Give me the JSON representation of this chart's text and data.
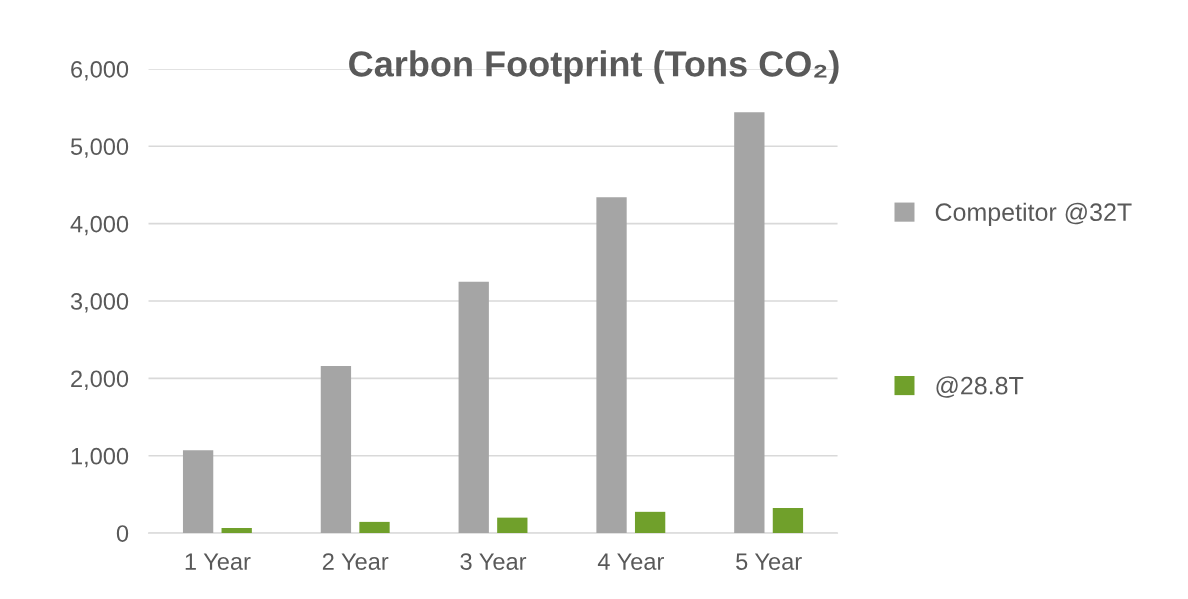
{
  "chart_data": {
    "type": "bar",
    "title": "Carbon Footprint (Tons CO₂)",
    "categories": [
      "1 Year",
      "2 Year",
      "3 Year",
      "4 Year",
      "5 Year"
    ],
    "series": [
      {
        "name": "Competitor @32T",
        "color": "#a5a5a5",
        "values": [
          1070,
          2160,
          3250,
          4340,
          5440
        ]
      },
      {
        "name": "@28.8T",
        "color": "#70a02b",
        "values": [
          65,
          145,
          200,
          275,
          325
        ]
      }
    ],
    "ylim": [
      0,
      6000
    ],
    "yticks": [
      {
        "value": 0,
        "label": "0"
      },
      {
        "value": 1000,
        "label": "1,000"
      },
      {
        "value": 2000,
        "label": "2,000"
      },
      {
        "value": 3000,
        "label": "3,000"
      },
      {
        "value": 4000,
        "label": "4,000"
      },
      {
        "value": 5000,
        "label": "5,000"
      },
      {
        "value": 6000,
        "label": "6,000"
      }
    ],
    "grid": "y",
    "legend": "right"
  }
}
